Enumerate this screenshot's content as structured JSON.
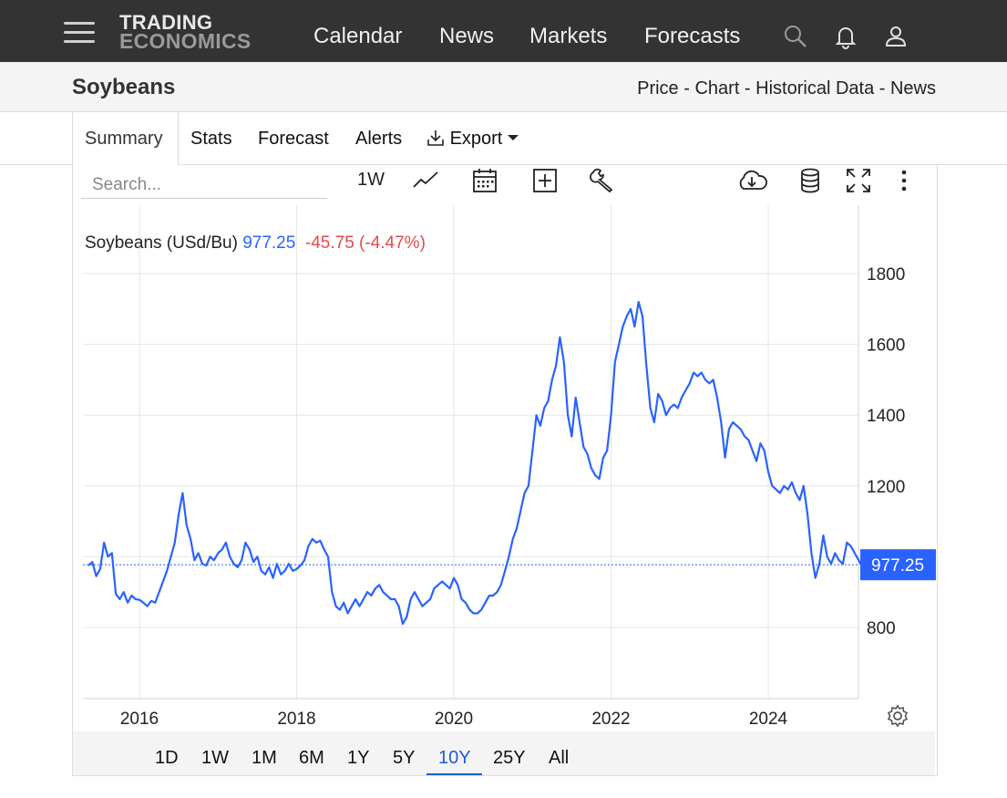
{
  "topbar": {
    "logo_line1": "TRADING",
    "logo_line2": "ECONOMICS",
    "nav": [
      "Calendar",
      "News",
      "Markets",
      "Forecasts"
    ],
    "icons": [
      "search-icon",
      "bell-icon",
      "user-icon",
      "menu-icon"
    ]
  },
  "header": {
    "title": "Soybeans",
    "breadcrumbs": [
      "Price",
      "Chart",
      "Historical Data",
      "News"
    ],
    "separator": " - "
  },
  "tabs": [
    "Summary",
    "Stats",
    "Forecast",
    "Alerts",
    "Export"
  ],
  "toolbar": {
    "search_placeholder": "Search...",
    "interval": "1W"
  },
  "legend": {
    "name": "Soybeans (USd/Bu)",
    "price": "977.25",
    "change": "-45.75 (-4.47%)"
  },
  "ranges": [
    "1D",
    "1W",
    "1M",
    "6M",
    "1Y",
    "5Y",
    "10Y",
    "25Y",
    "All"
  ],
  "active_range": "10Y",
  "colors": {
    "line": "#2962ff",
    "negative": "#e5484d",
    "topbar": "#333333",
    "accent": "#1f5bd8"
  },
  "chart_data": {
    "type": "line",
    "title": "Soybeans (USd/Bu)",
    "xlabel": "",
    "ylabel": "",
    "xlim": [
      2015.35,
      2025.2
    ],
    "ylim": [
      600,
      1950
    ],
    "x_ticks": [
      "2016",
      "2018",
      "2020",
      "2022",
      "2024"
    ],
    "y_ticks": [
      "800",
      "1000",
      "1200",
      "1400",
      "1600",
      "1800"
    ],
    "last_value": 977.25,
    "last_label": "977.25",
    "grid": true,
    "series": [
      {
        "name": "Soybeans",
        "points": [
          [
            2015.35,
            975
          ],
          [
            2015.4,
            985
          ],
          [
            2015.45,
            945
          ],
          [
            2015.5,
            965
          ],
          [
            2015.55,
            1040
          ],
          [
            2015.6,
            1000
          ],
          [
            2015.65,
            1010
          ],
          [
            2015.7,
            895
          ],
          [
            2015.75,
            880
          ],
          [
            2015.8,
            900
          ],
          [
            2015.85,
            870
          ],
          [
            2015.9,
            890
          ],
          [
            2015.95,
            880
          ],
          [
            2016.0,
            878
          ],
          [
            2016.05,
            870
          ],
          [
            2016.1,
            860
          ],
          [
            2016.15,
            875
          ],
          [
            2016.2,
            870
          ],
          [
            2016.25,
            900
          ],
          [
            2016.3,
            930
          ],
          [
            2016.35,
            960
          ],
          [
            2016.4,
            1000
          ],
          [
            2016.45,
            1040
          ],
          [
            2016.5,
            1120
          ],
          [
            2016.55,
            1180
          ],
          [
            2016.6,
            1090
          ],
          [
            2016.65,
            1050
          ],
          [
            2016.7,
            990
          ],
          [
            2016.75,
            1010
          ],
          [
            2016.8,
            980
          ],
          [
            2016.85,
            975
          ],
          [
            2016.9,
            1000
          ],
          [
            2016.95,
            990
          ],
          [
            2017.0,
            1010
          ],
          [
            2017.05,
            1020
          ],
          [
            2017.1,
            1040
          ],
          [
            2017.15,
            1000
          ],
          [
            2017.2,
            980
          ],
          [
            2017.25,
            970
          ],
          [
            2017.3,
            990
          ],
          [
            2017.35,
            1040
          ],
          [
            2017.4,
            1020
          ],
          [
            2017.45,
            985
          ],
          [
            2017.5,
            1000
          ],
          [
            2017.55,
            960
          ],
          [
            2017.6,
            950
          ],
          [
            2017.65,
            970
          ],
          [
            2017.7,
            940
          ],
          [
            2017.75,
            980
          ],
          [
            2017.8,
            950
          ],
          [
            2017.85,
            960
          ],
          [
            2017.9,
            980
          ],
          [
            2017.95,
            960
          ],
          [
            2018.0,
            965
          ],
          [
            2018.05,
            975
          ],
          [
            2018.1,
            990
          ],
          [
            2018.15,
            1030
          ],
          [
            2018.2,
            1050
          ],
          [
            2018.25,
            1040
          ],
          [
            2018.3,
            1045
          ],
          [
            2018.35,
            1020
          ],
          [
            2018.4,
            1000
          ],
          [
            2018.45,
            900
          ],
          [
            2018.5,
            860
          ],
          [
            2018.55,
            850
          ],
          [
            2018.6,
            870
          ],
          [
            2018.65,
            840
          ],
          [
            2018.7,
            860
          ],
          [
            2018.75,
            880
          ],
          [
            2018.8,
            860
          ],
          [
            2018.85,
            880
          ],
          [
            2018.9,
            900
          ],
          [
            2018.95,
            890
          ],
          [
            2019.0,
            910
          ],
          [
            2019.05,
            920
          ],
          [
            2019.1,
            900
          ],
          [
            2019.15,
            890
          ],
          [
            2019.2,
            880
          ],
          [
            2019.25,
            880
          ],
          [
            2019.3,
            860
          ],
          [
            2019.35,
            810
          ],
          [
            2019.4,
            830
          ],
          [
            2019.45,
            880
          ],
          [
            2019.5,
            900
          ],
          [
            2019.55,
            880
          ],
          [
            2019.6,
            860
          ],
          [
            2019.65,
            870
          ],
          [
            2019.7,
            880
          ],
          [
            2019.75,
            910
          ],
          [
            2019.8,
            920
          ],
          [
            2019.85,
            930
          ],
          [
            2019.9,
            920
          ],
          [
            2019.95,
            910
          ],
          [
            2020.0,
            940
          ],
          [
            2020.05,
            920
          ],
          [
            2020.1,
            880
          ],
          [
            2020.15,
            870
          ],
          [
            2020.2,
            850
          ],
          [
            2020.25,
            840
          ],
          [
            2020.3,
            840
          ],
          [
            2020.35,
            850
          ],
          [
            2020.4,
            870
          ],
          [
            2020.45,
            890
          ],
          [
            2020.5,
            890
          ],
          [
            2020.55,
            900
          ],
          [
            2020.6,
            920
          ],
          [
            2020.65,
            960
          ],
          [
            2020.7,
            1000
          ],
          [
            2020.75,
            1050
          ],
          [
            2020.8,
            1080
          ],
          [
            2020.85,
            1130
          ],
          [
            2020.9,
            1180
          ],
          [
            2020.95,
            1200
          ],
          [
            2021.0,
            1300
          ],
          [
            2021.05,
            1400
          ],
          [
            2021.1,
            1370
          ],
          [
            2021.15,
            1420
          ],
          [
            2021.2,
            1440
          ],
          [
            2021.25,
            1500
          ],
          [
            2021.3,
            1540
          ],
          [
            2021.35,
            1620
          ],
          [
            2021.4,
            1550
          ],
          [
            2021.45,
            1400
          ],
          [
            2021.5,
            1340
          ],
          [
            2021.55,
            1450
          ],
          [
            2021.6,
            1380
          ],
          [
            2021.65,
            1310
          ],
          [
            2021.7,
            1290
          ],
          [
            2021.75,
            1250
          ],
          [
            2021.8,
            1230
          ],
          [
            2021.85,
            1220
          ],
          [
            2021.9,
            1280
          ],
          [
            2021.95,
            1300
          ],
          [
            2022.0,
            1400
          ],
          [
            2022.05,
            1550
          ],
          [
            2022.1,
            1600
          ],
          [
            2022.15,
            1650
          ],
          [
            2022.2,
            1680
          ],
          [
            2022.25,
            1700
          ],
          [
            2022.3,
            1650
          ],
          [
            2022.35,
            1720
          ],
          [
            2022.4,
            1680
          ],
          [
            2022.45,
            1540
          ],
          [
            2022.5,
            1420
          ],
          [
            2022.55,
            1380
          ],
          [
            2022.6,
            1460
          ],
          [
            2022.65,
            1440
          ],
          [
            2022.7,
            1400
          ],
          [
            2022.75,
            1420
          ],
          [
            2022.8,
            1430
          ],
          [
            2022.85,
            1420
          ],
          [
            2022.9,
            1450
          ],
          [
            2022.95,
            1470
          ],
          [
            2023.0,
            1490
          ],
          [
            2023.05,
            1520
          ],
          [
            2023.1,
            1510
          ],
          [
            2023.15,
            1520
          ],
          [
            2023.2,
            1500
          ],
          [
            2023.25,
            1490
          ],
          [
            2023.3,
            1500
          ],
          [
            2023.35,
            1450
          ],
          [
            2023.4,
            1380
          ],
          [
            2023.45,
            1280
          ],
          [
            2023.5,
            1360
          ],
          [
            2023.55,
            1380
          ],
          [
            2023.6,
            1370
          ],
          [
            2023.65,
            1360
          ],
          [
            2023.7,
            1340
          ],
          [
            2023.75,
            1330
          ],
          [
            2023.8,
            1300
          ],
          [
            2023.85,
            1270
          ],
          [
            2023.9,
            1320
          ],
          [
            2023.95,
            1300
          ],
          [
            2024.0,
            1240
          ],
          [
            2024.05,
            1200
          ],
          [
            2024.1,
            1190
          ],
          [
            2024.15,
            1180
          ],
          [
            2024.2,
            1200
          ],
          [
            2024.25,
            1190
          ],
          [
            2024.3,
            1210
          ],
          [
            2024.35,
            1180
          ],
          [
            2024.4,
            1160
          ],
          [
            2024.45,
            1200
          ],
          [
            2024.5,
            1120
          ],
          [
            2024.55,
            1010
          ],
          [
            2024.6,
            940
          ],
          [
            2024.65,
            980
          ],
          [
            2024.7,
            1060
          ],
          [
            2024.75,
            1000
          ],
          [
            2024.8,
            980
          ],
          [
            2024.85,
            1010
          ],
          [
            2024.9,
            990
          ],
          [
            2024.95,
            980
          ],
          [
            2025.0,
            1040
          ],
          [
            2025.05,
            1030
          ],
          [
            2025.1,
            1010
          ],
          [
            2025.15,
            990
          ],
          [
            2025.18,
            977.25
          ]
        ]
      }
    ]
  }
}
